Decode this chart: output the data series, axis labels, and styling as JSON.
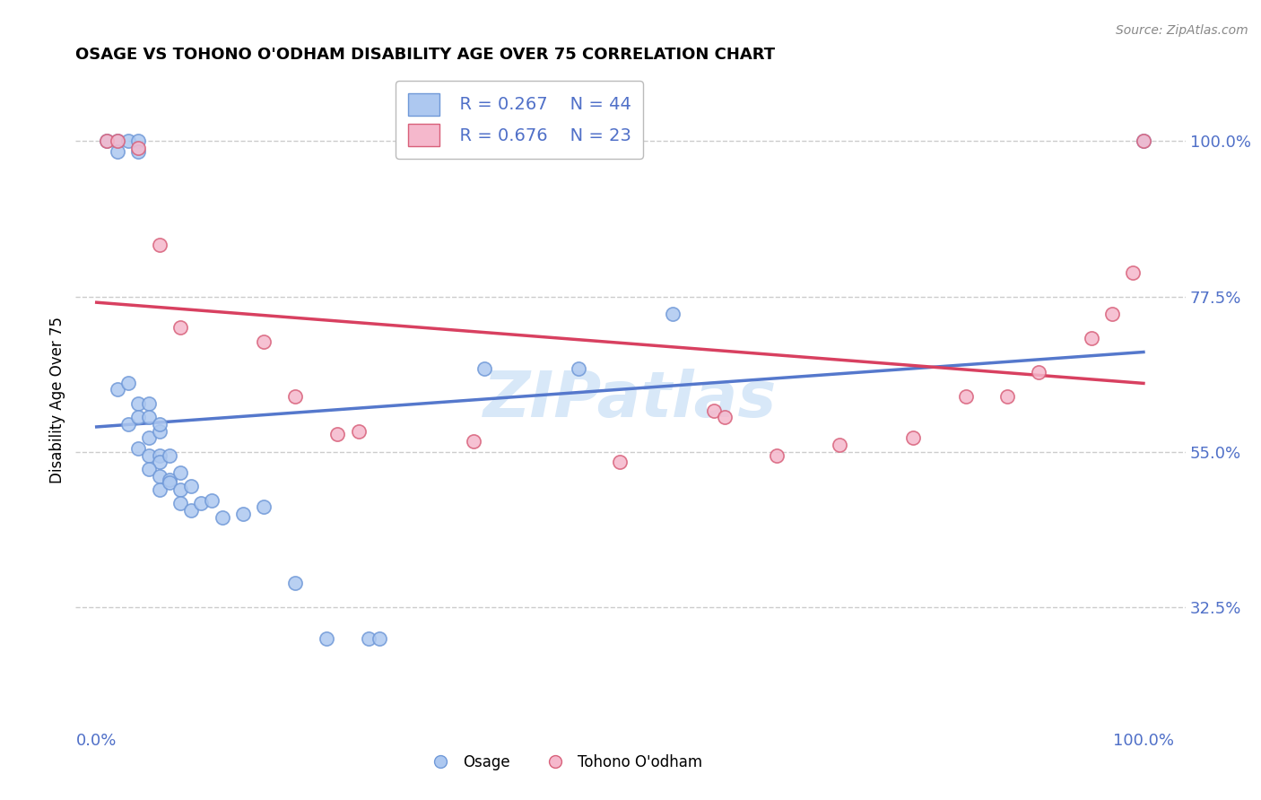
{
  "title": "OSAGE VS TOHONO O'ODHAM DISABILITY AGE OVER 75 CORRELATION CHART",
  "source": "Source: ZipAtlas.com",
  "ylabel": "Disability Age Over 75",
  "legend_osage": "Osage",
  "legend_tohono": "Tohono O'odham",
  "R_osage": "R = 0.267",
  "N_osage": "N = 44",
  "R_tohono": "R = 0.676",
  "N_tohono": "N = 23",
  "color_osage": "#adc8f0",
  "color_tohono": "#f5b8cc",
  "edge_color_osage": "#7099d8",
  "edge_color_tohono": "#d8607a",
  "line_color_osage": "#5578cc",
  "line_color_tohono": "#d84060",
  "tick_color": "#5070c8",
  "watermark_color": "#d8e8f8",
  "yticks": [
    0.325,
    0.55,
    0.775,
    1.0
  ],
  "yticklabels": [
    "32.5%",
    "55.0%",
    "77.5%",
    "100.0%"
  ],
  "xlim": [
    -0.02,
    1.04
  ],
  "ylim": [
    0.15,
    1.1
  ],
  "osage_x": [
    0.01,
    0.02,
    0.03,
    0.04,
    0.02,
    0.04,
    0.02,
    0.03,
    0.04,
    0.05,
    0.03,
    0.04,
    0.05,
    0.05,
    0.06,
    0.06,
    0.04,
    0.05,
    0.06,
    0.06,
    0.07,
    0.05,
    0.06,
    0.07,
    0.08,
    0.06,
    0.07,
    0.08,
    0.09,
    0.08,
    0.09,
    0.1,
    0.11,
    0.12,
    0.14,
    0.16,
    0.19,
    0.22,
    0.26,
    0.27,
    0.37,
    0.46,
    0.55,
    1.0
  ],
  "osage_y": [
    1.0,
    1.0,
    1.0,
    1.0,
    0.985,
    0.985,
    0.64,
    0.65,
    0.62,
    0.62,
    0.59,
    0.6,
    0.6,
    0.57,
    0.58,
    0.59,
    0.555,
    0.545,
    0.545,
    0.535,
    0.545,
    0.525,
    0.515,
    0.51,
    0.52,
    0.495,
    0.505,
    0.495,
    0.5,
    0.475,
    0.465,
    0.475,
    0.48,
    0.455,
    0.46,
    0.47,
    0.36,
    0.28,
    0.28,
    0.28,
    0.67,
    0.67,
    0.75,
    1.0
  ],
  "tohono_x": [
    0.01,
    0.02,
    0.04,
    0.06,
    0.08,
    0.16,
    0.19,
    0.23,
    0.25,
    0.36,
    0.5,
    0.59,
    0.6,
    0.65,
    0.71,
    0.78,
    0.83,
    0.87,
    0.9,
    0.95,
    0.97,
    0.99,
    1.0
  ],
  "tohono_y": [
    1.0,
    1.0,
    0.99,
    0.85,
    0.73,
    0.71,
    0.63,
    0.575,
    0.58,
    0.565,
    0.535,
    0.61,
    0.6,
    0.545,
    0.56,
    0.57,
    0.63,
    0.63,
    0.665,
    0.715,
    0.75,
    0.81,
    1.0
  ]
}
